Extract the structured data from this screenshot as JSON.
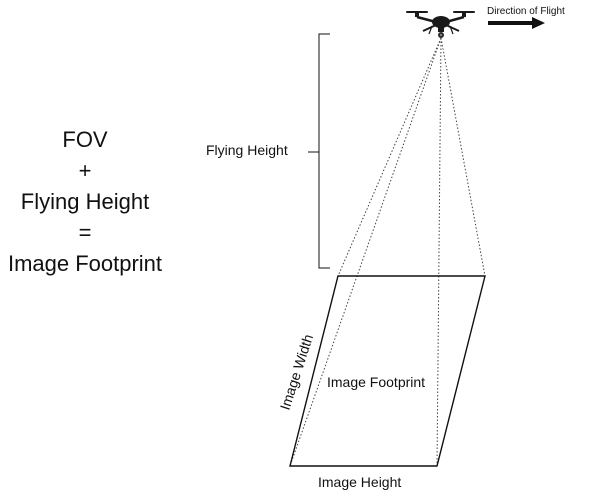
{
  "equation": {
    "term1": "FOV",
    "op1": "+",
    "term2": "Flying Height",
    "op2": "=",
    "result": "Image Footprint"
  },
  "labels": {
    "flying_height": "Flying Height",
    "direction_of_flight": "Direction of Flight",
    "image_width": "Image Width",
    "image_footprint": "Image Footprint",
    "image_height": "Image Height"
  },
  "colors": {
    "line": "#111111",
    "drone_body": "#1a1a1a",
    "background": "#ffffff"
  }
}
